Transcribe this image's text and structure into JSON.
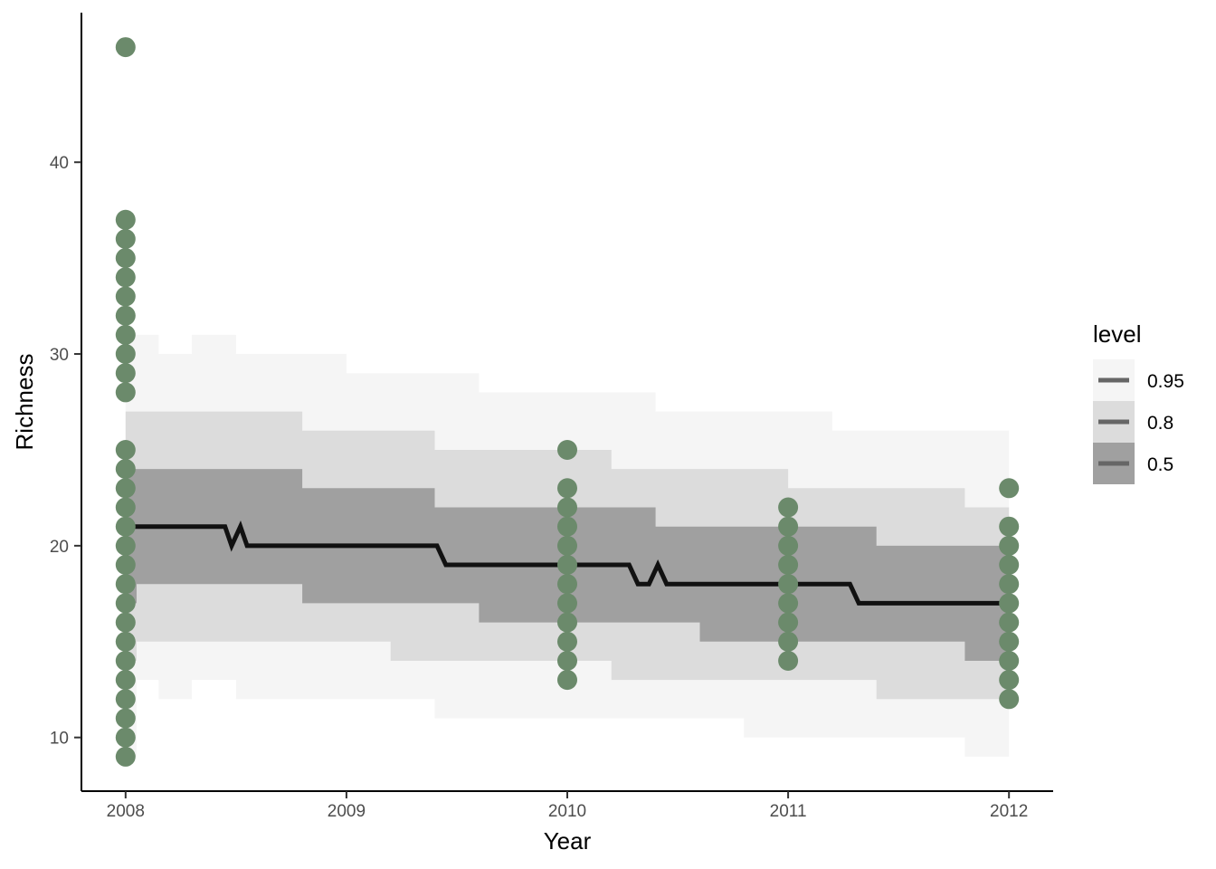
{
  "chart_data": {
    "type": "line",
    "title": "",
    "xlabel": "Year",
    "ylabel": "Richness",
    "x_ticks": [
      "2008",
      "2009",
      "2010",
      "2011",
      "2012"
    ],
    "y_ticks": [
      "10",
      "20",
      "30",
      "40"
    ],
    "xlim": [
      2007.8,
      2012.2
    ],
    "ylim": [
      7.2,
      47.8
    ],
    "grid": false,
    "legend": {
      "title": "level",
      "position": "right",
      "entries": [
        "0.95",
        "0.8",
        "0.5"
      ]
    },
    "colors": {
      "points": "#6b8a6b",
      "median_line": "#111111",
      "band_95": "#f5f5f5",
      "band_80": "#dcdcdc",
      "band_50": "#a0a0a0"
    },
    "median_line": {
      "x": [
        2008,
        2008.45,
        2008.48,
        2008.52,
        2008.55,
        2009.41,
        2009.45,
        2010.28,
        2010.32,
        2010.37,
        2010.41,
        2010.45,
        2011.28,
        2011.32,
        2012
      ],
      "y": [
        21,
        21,
        20,
        21,
        20,
        20,
        19,
        19,
        18,
        18,
        19,
        18,
        18,
        17,
        17
      ]
    },
    "bands": [
      {
        "level": "0.95",
        "x": [
          2008,
          2008.05,
          2008.15,
          2008.3,
          2008.5,
          2008.8,
          2009.0,
          2009.2,
          2009.4,
          2009.6,
          2009.8,
          2010.0,
          2010.2,
          2010.4,
          2010.6,
          2010.8,
          2011.0,
          2011.2,
          2011.4,
          2011.6,
          2011.8,
          2012
        ],
        "lower": [
          9,
          13,
          12,
          13,
          12,
          12,
          12,
          12,
          11,
          11,
          11,
          11,
          11,
          11,
          11,
          10,
          10,
          10,
          10,
          10,
          9,
          9
        ],
        "upper": [
          31,
          31,
          30,
          31,
          30,
          30,
          29,
          29,
          29,
          28,
          28,
          28,
          28,
          27,
          27,
          27,
          27,
          26,
          26,
          26,
          26,
          25
        ]
      },
      {
        "level": "0.8",
        "x": [
          2008,
          2008.05,
          2008.15,
          2008.3,
          2008.5,
          2008.8,
          2009.0,
          2009.2,
          2009.4,
          2009.6,
          2009.8,
          2010.0,
          2010.2,
          2010.4,
          2010.6,
          2010.8,
          2011.0,
          2011.2,
          2011.4,
          2011.6,
          2011.8,
          2012
        ],
        "lower": [
          14,
          15,
          15,
          15,
          15,
          15,
          15,
          14,
          14,
          14,
          14,
          14,
          13,
          13,
          13,
          13,
          13,
          13,
          12,
          12,
          12,
          12
        ],
        "upper": [
          27,
          27,
          27,
          27,
          27,
          26,
          26,
          26,
          25,
          25,
          25,
          25,
          24,
          24,
          24,
          24,
          23,
          23,
          23,
          23,
          22,
          22
        ]
      },
      {
        "level": "0.5",
        "x": [
          2008,
          2008.05,
          2008.15,
          2008.3,
          2008.5,
          2008.8,
          2009.0,
          2009.2,
          2009.4,
          2009.6,
          2009.8,
          2010.0,
          2010.2,
          2010.4,
          2010.6,
          2010.8,
          2011.0,
          2011.2,
          2011.4,
          2011.6,
          2011.8,
          2012
        ],
        "lower": [
          17,
          18,
          18,
          18,
          18,
          17,
          17,
          17,
          17,
          16,
          16,
          16,
          16,
          16,
          15,
          15,
          15,
          15,
          15,
          15,
          14,
          14
        ],
        "upper": [
          24,
          24,
          24,
          24,
          24,
          23,
          23,
          23,
          22,
          22,
          22,
          22,
          22,
          21,
          21,
          21,
          21,
          21,
          20,
          20,
          20,
          20
        ]
      }
    ],
    "points": [
      {
        "year": 2008,
        "values": [
          46,
          37,
          36,
          35,
          34,
          33,
          32,
          31,
          30,
          29,
          28,
          25,
          24,
          23,
          22,
          21,
          20,
          19,
          18,
          17,
          16,
          15,
          14,
          13,
          12,
          11,
          10,
          9
        ]
      },
      {
        "year": 2010,
        "values": [
          25,
          23,
          22,
          21,
          20,
          19,
          18,
          17,
          16,
          15,
          14,
          13
        ]
      },
      {
        "year": 2011,
        "values": [
          22,
          21,
          20,
          19,
          18,
          17,
          16,
          15,
          14
        ]
      },
      {
        "year": 2012,
        "values": [
          23,
          21,
          20,
          19,
          18,
          17,
          16,
          15,
          14,
          13,
          12
        ]
      }
    ]
  }
}
